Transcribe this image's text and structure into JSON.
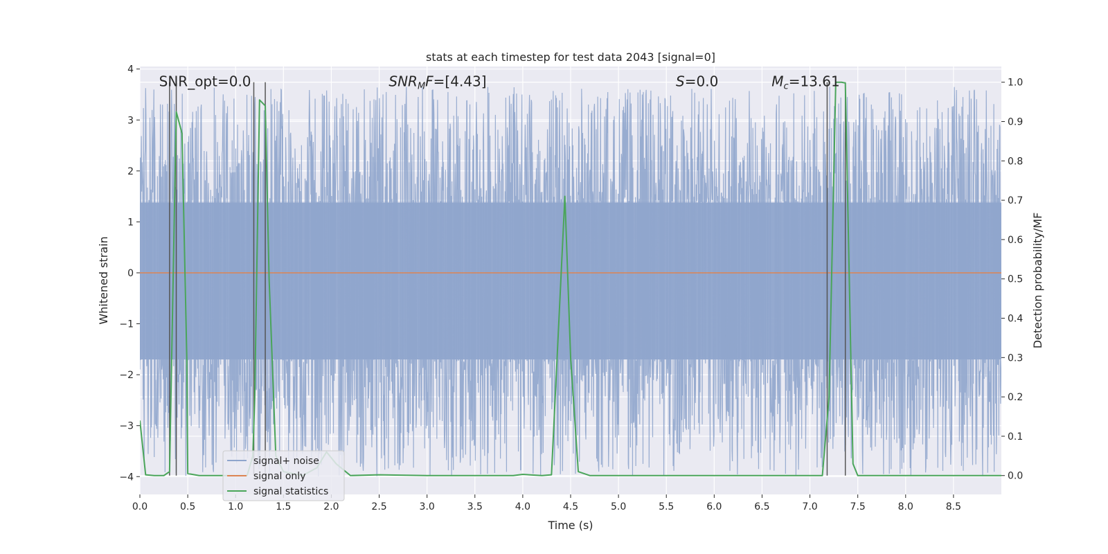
{
  "chart_data": {
    "type": "line",
    "title": "stats at each timestep for test data 2043 [signal=0]",
    "xlabel": "Time (s)",
    "ylabel_left": "Whitened strain",
    "ylabel_right": "Detection probability/MF",
    "xlim": [
      0.0,
      9.0
    ],
    "ylim_left": [
      -4.35,
      4.05
    ],
    "ylim_right": [
      -0.048,
      1.04
    ],
    "x_ticks": [
      "0.0",
      "0.5",
      "1.0",
      "1.5",
      "2.0",
      "2.5",
      "3.0",
      "3.5",
      "4.0",
      "4.5",
      "5.0",
      "5.5",
      "6.0",
      "6.5",
      "7.0",
      "7.5",
      "8.0",
      "8.5"
    ],
    "x_tick_values": [
      0.0,
      0.5,
      1.0,
      1.5,
      2.0,
      2.5,
      3.0,
      3.5,
      4.0,
      4.5,
      5.0,
      5.5,
      6.0,
      6.5,
      7.0,
      7.5,
      8.0,
      8.5
    ],
    "y_left_ticks": [
      "4",
      "3",
      "2",
      "1",
      "0",
      "−1",
      "−2",
      "−3",
      "−4"
    ],
    "y_left_tick_values": [
      4,
      3,
      2,
      1,
      0,
      -1,
      -2,
      -3,
      -4
    ],
    "y_right_ticks": [
      "1.0",
      "0.9",
      "0.8",
      "0.7",
      "0.6",
      "0.5",
      "0.4",
      "0.3",
      "0.2",
      "0.1",
      "0.0"
    ],
    "y_right_tick_values": [
      1.0,
      0.9,
      0.8,
      0.7,
      0.6,
      0.5,
      0.4,
      0.3,
      0.2,
      0.1,
      0.0
    ],
    "grid": true,
    "legend_position": "lower-left",
    "annotations": [
      {
        "id": "snr-opt",
        "html": "SNR_opt=0.0",
        "x": 0.2,
        "y_right": 0.99
      },
      {
        "id": "snr-mf",
        "html": "<tspan font-style='italic'>SNR</tspan><tspan font-style='italic' font-size='13' dy='4'>M</tspan><tspan font-style='italic' dy='-4'>F</tspan>=[4.43]",
        "x": 2.6,
        "y_right": 0.99
      },
      {
        "id": "s-value",
        "html": "<tspan font-style='italic'>S</tspan>=0.0",
        "x": 5.6,
        "y_right": 0.99
      },
      {
        "id": "mc-value",
        "html": "<tspan font-style='italic'>M</tspan><tspan font-style='italic' font-size='13' dy='4'>c</tspan><tspan dy='-4'>=13.61</tspan>",
        "x": 6.6,
        "y_right": 0.99
      }
    ],
    "vertical_lines": {
      "color": "#555555",
      "x": [
        0.31,
        0.38,
        1.19,
        1.31,
        7.18,
        7.37
      ],
      "y_right_top": 1.0
    },
    "series": [
      {
        "name": "signal+ noise",
        "color": "#8fa5cc",
        "axis": "left",
        "noise": {
          "core_min": -1.7,
          "core_max": 1.38,
          "peak_max": 3.65,
          "trough_min": -4.0,
          "seed": 2043
        }
      },
      {
        "name": "signal only",
        "color": "#dd8452",
        "axis": "left",
        "x": [
          0.0,
          9.0
        ],
        "y": [
          0.0,
          0.0
        ]
      },
      {
        "name": "signal statistics",
        "color": "#4aa55a",
        "axis": "right",
        "x": [
          0.0,
          0.06,
          0.15,
          0.25,
          0.31,
          0.38,
          0.44,
          0.49,
          0.5,
          0.62,
          0.8,
          1.0,
          1.12,
          1.18,
          1.2,
          1.25,
          1.31,
          1.35,
          1.42,
          1.5,
          1.7,
          1.85,
          1.95,
          2.05,
          2.2,
          2.5,
          3.0,
          3.5,
          3.9,
          4.0,
          4.2,
          4.3,
          4.44,
          4.5,
          4.58,
          4.7,
          5.0,
          6.0,
          6.5,
          7.0,
          7.13,
          7.2,
          7.27,
          7.33,
          7.37,
          7.45,
          7.5,
          8.0,
          8.5,
          9.0
        ],
        "y": [
          0.14,
          0.002,
          0.0,
          0.0,
          0.01,
          0.925,
          0.87,
          0.3,
          0.005,
          0.0,
          0.0,
          0.0,
          0.0,
          0.05,
          0.2,
          0.955,
          0.94,
          0.5,
          0.05,
          0.01,
          0.0,
          0.02,
          0.06,
          0.03,
          0.0,
          0.002,
          0.0,
          0.0,
          0.0,
          0.003,
          0.0,
          0.002,
          0.71,
          0.3,
          0.01,
          0.0,
          0.0,
          0.0,
          0.0,
          0.0,
          0.0,
          0.2,
          1.0,
          1.0,
          0.998,
          0.03,
          0.0,
          0.0,
          0.0,
          0.0
        ]
      }
    ]
  }
}
